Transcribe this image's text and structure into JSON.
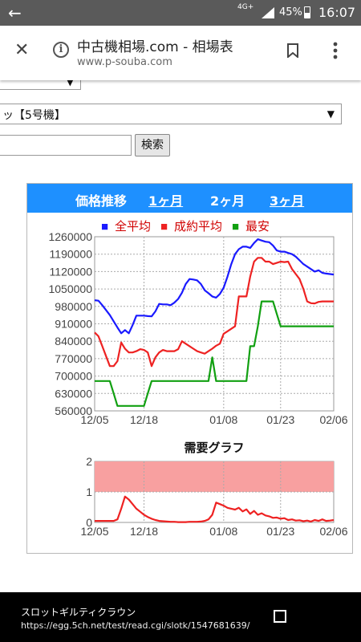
{
  "status_bar": {
    "network": "4G+",
    "battery": "45%",
    "time": "16:07",
    "back_icon": "back-arrow-icon"
  },
  "toolbar": {
    "title": "中古機相場.com - 相場表",
    "url": "www.p-souba.com",
    "icons": [
      "close-icon",
      "info-icon",
      "bookmark-icon",
      "more-vert-icon"
    ]
  },
  "form": {
    "select1_value": "",
    "select2_value": "ッ【5号機】",
    "search_value": "",
    "search_button": "検索"
  },
  "chart_header": {
    "title": "価格推移",
    "period_1m": "1ヶ月",
    "period_2m": "2ヶ月",
    "period_3m": "3ヶ月",
    "background": "#1e90ff"
  },
  "chart_data": [
    {
      "type": "line",
      "title": "",
      "legend": [
        {
          "name": "全平均",
          "color": "#1a1aff"
        },
        {
          "name": "成約平均",
          "color": "#ee2222"
        },
        {
          "name": "最安",
          "color": "#11a011"
        }
      ],
      "legend_placement": "top",
      "x_start": "12/05",
      "x_end": "02/06",
      "x_tick_labels": [
        "12/05",
        "12/18",
        "01/08",
        "01/23",
        "02/06"
      ],
      "xlim": [
        0,
        63
      ],
      "x_ticks": [
        0,
        13,
        34,
        49,
        63
      ],
      "y_tick_labels": [
        "1260000",
        "1190000",
        "1120000",
        "1050000",
        "980000",
        "910000",
        "840000",
        "770000",
        "700000",
        "630000",
        "560000"
      ],
      "ylim": [
        560000,
        1260000
      ],
      "grid": true,
      "series": [
        {
          "name": "全平均",
          "color": "#1a1aff",
          "x": [
            0,
            1,
            2,
            3,
            4,
            5,
            6,
            7,
            8,
            9,
            10,
            11,
            12,
            13,
            14,
            15,
            16,
            17,
            18,
            19,
            20,
            21,
            22,
            23,
            24,
            25,
            26,
            27,
            28,
            29,
            30,
            31,
            32,
            33,
            34,
            35,
            36,
            37,
            38,
            39,
            40,
            41,
            42,
            43,
            44,
            45,
            46,
            47,
            48,
            49,
            50,
            51,
            52,
            53,
            54,
            55,
            56,
            57,
            58,
            59,
            60,
            61,
            62,
            63
          ],
          "values": [
            1005000,
            1003000,
            985000,
            965000,
            945000,
            920000,
            895000,
            872000,
            885000,
            872000,
            905000,
            943000,
            943000,
            943000,
            941000,
            940000,
            960000,
            990000,
            988000,
            988000,
            985000,
            995000,
            1010000,
            1035000,
            1070000,
            1090000,
            1088000,
            1085000,
            1070000,
            1045000,
            1033000,
            1020000,
            1015000,
            1030000,
            1055000,
            1100000,
            1150000,
            1190000,
            1210000,
            1220000,
            1220000,
            1215000,
            1235000,
            1250000,
            1245000,
            1240000,
            1238000,
            1225000,
            1205000,
            1200000,
            1200000,
            1195000,
            1190000,
            1180000,
            1165000,
            1150000,
            1140000,
            1130000,
            1120000,
            1125000,
            1115000,
            1112000,
            1110000,
            1108000
          ]
        },
        {
          "name": "成約平均",
          "color": "#ee2222",
          "x": [
            0,
            1,
            2,
            3,
            4,
            5,
            6,
            7,
            8,
            9,
            10,
            11,
            12,
            13,
            14,
            15,
            16,
            17,
            18,
            19,
            20,
            21,
            22,
            23,
            24,
            25,
            26,
            27,
            28,
            29,
            30,
            31,
            32,
            33,
            34,
            35,
            36,
            37,
            38,
            39,
            40,
            41,
            42,
            43,
            44,
            45,
            46,
            47,
            48,
            49,
            50,
            51,
            52,
            53,
            54,
            55,
            56,
            57,
            58,
            59,
            60,
            61,
            62,
            63
          ],
          "values": [
            875000,
            860000,
            820000,
            780000,
            740000,
            740000,
            760000,
            835000,
            810000,
            795000,
            795000,
            800000,
            808000,
            805000,
            795000,
            740000,
            775000,
            795000,
            805000,
            800000,
            800000,
            800000,
            808000,
            840000,
            830000,
            820000,
            810000,
            800000,
            795000,
            790000,
            800000,
            810000,
            822000,
            830000,
            870000,
            880000,
            890000,
            900000,
            1020000,
            1020000,
            1020000,
            1100000,
            1160000,
            1175000,
            1175000,
            1160000,
            1160000,
            1150000,
            1155000,
            1160000,
            1158000,
            1160000,
            1130000,
            1110000,
            1090000,
            1050000,
            1000000,
            993000,
            992000,
            998000,
            1000000,
            1000000,
            1000000,
            1000000
          ]
        },
        {
          "name": "最安",
          "color": "#11a011",
          "x": [
            0,
            1,
            2,
            3,
            4,
            5,
            6,
            7,
            8,
            9,
            10,
            11,
            12,
            13,
            14,
            15,
            16,
            17,
            18,
            19,
            20,
            21,
            22,
            23,
            24,
            25,
            26,
            27,
            28,
            29,
            30,
            31,
            32,
            33,
            34,
            35,
            36,
            37,
            38,
            39,
            40,
            41,
            42,
            43,
            44,
            45,
            46,
            47,
            48,
            49,
            50,
            51,
            52,
            53,
            54,
            55,
            56,
            57,
            58,
            59,
            60,
            61,
            62,
            63
          ],
          "values": [
            680000,
            680000,
            680000,
            680000,
            680000,
            630000,
            580000,
            580000,
            580000,
            580000,
            580000,
            580000,
            580000,
            580000,
            630000,
            680000,
            680000,
            680000,
            680000,
            680000,
            680000,
            680000,
            680000,
            680000,
            680000,
            680000,
            680000,
            680000,
            680000,
            680000,
            680000,
            775000,
            680000,
            680000,
            680000,
            680000,
            680000,
            680000,
            680000,
            680000,
            680000,
            820000,
            820000,
            900000,
            1000000,
            1000000,
            1000000,
            1000000,
            950000,
            900000,
            900000,
            900000,
            900000,
            900000,
            900000,
            900000,
            900000,
            900000,
            900000,
            900000,
            900000,
            900000,
            900000,
            900000
          ]
        }
      ]
    },
    {
      "type": "line",
      "title": "需要グラフ",
      "x_tick_labels": [
        "12/05",
        "12/18",
        "01/08",
        "01/23",
        "02/06"
      ],
      "xlim": [
        0,
        63
      ],
      "x_ticks": [
        0,
        13,
        34,
        49,
        63
      ],
      "y_tick_labels": [
        "2",
        "1",
        "0"
      ],
      "ylim": [
        0,
        2
      ],
      "grid": true,
      "band": {
        "from": 1,
        "to": 2,
        "color": "#f8a0a0"
      },
      "series": [
        {
          "name": "",
          "color": "#ee2222",
          "x": [
            0,
            1,
            2,
            3,
            4,
            5,
            6,
            7,
            8,
            9,
            10,
            11,
            12,
            13,
            14,
            15,
            16,
            17,
            18,
            19,
            20,
            21,
            22,
            23,
            24,
            25,
            26,
            27,
            28,
            29,
            30,
            31,
            32,
            33,
            34,
            35,
            36,
            37,
            38,
            39,
            40,
            41,
            42,
            43,
            44,
            45,
            46,
            47,
            48,
            49,
            50,
            51,
            52,
            53,
            54,
            55,
            56,
            57,
            58,
            59,
            60,
            61,
            62,
            63
          ],
          "values": [
            0.05,
            0.05,
            0.05,
            0.05,
            0.05,
            0.05,
            0.1,
            0.45,
            0.85,
            0.75,
            0.6,
            0.45,
            0.35,
            0.25,
            0.18,
            0.12,
            0.08,
            0.05,
            0.04,
            0.03,
            0.02,
            0.02,
            0.01,
            0.01,
            0.01,
            0.02,
            0.02,
            0.02,
            0.03,
            0.05,
            0.1,
            0.25,
            0.65,
            0.6,
            0.55,
            0.48,
            0.45,
            0.42,
            0.48,
            0.36,
            0.43,
            0.28,
            0.38,
            0.25,
            0.3,
            0.23,
            0.2,
            0.15,
            0.16,
            0.12,
            0.14,
            0.08,
            0.1,
            0.06,
            0.07,
            0.04,
            0.06,
            0.03,
            0.08,
            0.05,
            0.1,
            0.05,
            0.06,
            0.08
          ]
        }
      ]
    }
  ],
  "legend_marker": "■",
  "bottom_bar": {
    "title": "スロットギルティクラウン",
    "url": "https://egg.5ch.net/test/read.cgi/slotk/1547681639/",
    "icon": "square-icon"
  }
}
